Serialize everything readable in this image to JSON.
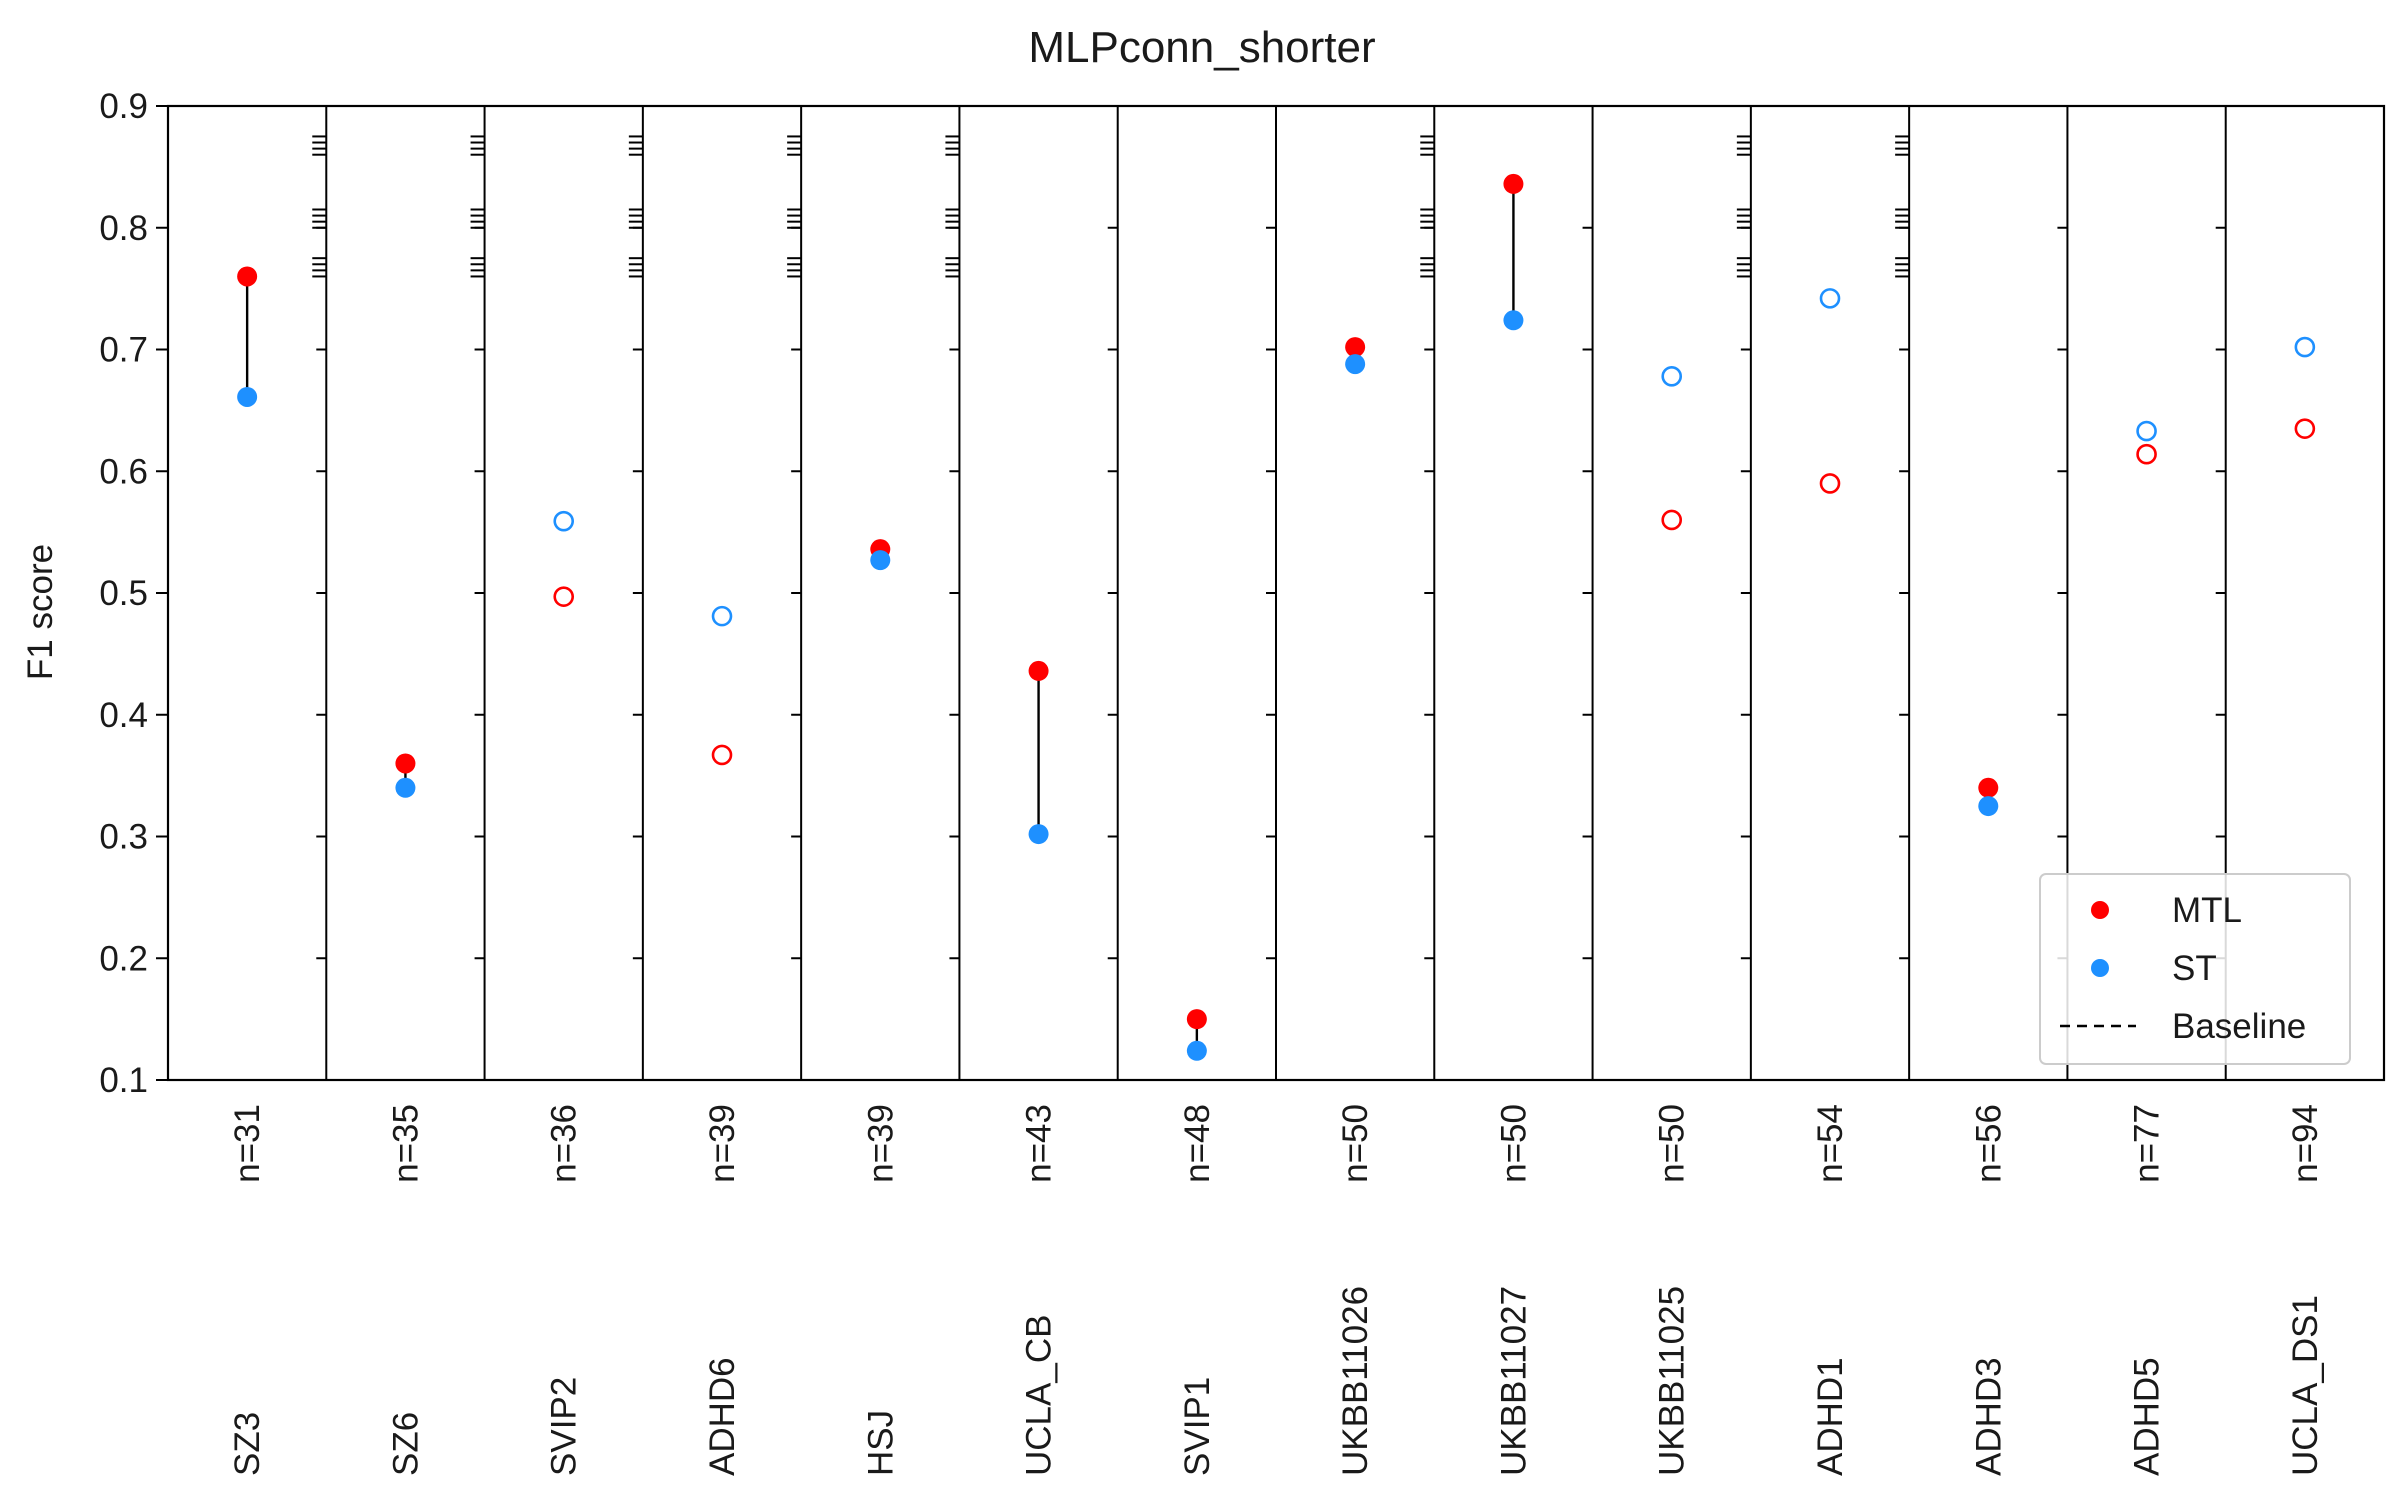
{
  "chart_data": {
    "type": "scatter",
    "title": "MLPconn_shorter",
    "ylabel": "F1 score",
    "xlabel": "",
    "ylim": [
      0.1,
      0.9
    ],
    "yticks": [
      "0.1",
      "0.2",
      "0.3",
      "0.4",
      "0.5",
      "0.6",
      "0.7",
      "0.8",
      "0.9"
    ],
    "grid": false,
    "legend_position": "bottom-right",
    "colors": {
      "MTL": "#ff0000",
      "ST": "#1e90ff",
      "connector": "#000000",
      "axis": "#000000"
    },
    "legend": [
      {
        "label": "MTL",
        "marker": "filled-circle",
        "color": "#ff0000"
      },
      {
        "label": "ST",
        "marker": "filled-circle",
        "color": "#1e90ff"
      },
      {
        "label": "Baseline",
        "marker": "dashed-line",
        "color": "#000000"
      }
    ],
    "groups": [
      {
        "name": "SZ3",
        "n": "n=31",
        "mtl": 0.76,
        "st": 0.661,
        "filled": true,
        "baseline_ticks": [
          0.76,
          0.765,
          0.77,
          0.775,
          0.8,
          0.805,
          0.81,
          0.815,
          0.86,
          0.865,
          0.87,
          0.875
        ]
      },
      {
        "name": "SZ6",
        "n": "n=35",
        "mtl": 0.36,
        "st": 0.34,
        "filled": true,
        "baseline_ticks": [
          0.76,
          0.765,
          0.77,
          0.775,
          0.8,
          0.805,
          0.81,
          0.815,
          0.86,
          0.865,
          0.87,
          0.875
        ]
      },
      {
        "name": "SVIP2",
        "n": "n=36",
        "mtl": 0.497,
        "st": 0.559,
        "filled": false,
        "baseline_ticks": [
          0.76,
          0.765,
          0.77,
          0.775,
          0.8,
          0.805,
          0.81,
          0.815,
          0.86,
          0.865,
          0.87,
          0.875
        ]
      },
      {
        "name": "ADHD6",
        "n": "n=39",
        "mtl": 0.367,
        "st": 0.481,
        "filled": false,
        "baseline_ticks": [
          0.76,
          0.765,
          0.77,
          0.775,
          0.8,
          0.805,
          0.81,
          0.815,
          0.86,
          0.865,
          0.87,
          0.875
        ]
      },
      {
        "name": "HSJ",
        "n": "n=39",
        "mtl": 0.536,
        "st": 0.527,
        "filled": true,
        "baseline_ticks": [
          0.76,
          0.765,
          0.77,
          0.775,
          0.8,
          0.805,
          0.81,
          0.815,
          0.86,
          0.865,
          0.87,
          0.875
        ]
      },
      {
        "name": "UCLA_CB",
        "n": "n=43",
        "mtl": 0.436,
        "st": 0.302,
        "filled": true,
        "baseline_ticks": []
      },
      {
        "name": "SVIP1",
        "n": "n=48",
        "mtl": 0.15,
        "st": 0.124,
        "filled": true,
        "baseline_ticks": []
      },
      {
        "name": "UKBB11026",
        "n": "n=50",
        "mtl": 0.702,
        "st": 0.688,
        "filled": true,
        "baseline_ticks": [
          0.76,
          0.765,
          0.77,
          0.775,
          0.8,
          0.805,
          0.81,
          0.815,
          0.86,
          0.865,
          0.87,
          0.875
        ]
      },
      {
        "name": "UKBB11027",
        "n": "n=50",
        "mtl": 0.836,
        "st": 0.724,
        "filled": true,
        "baseline_ticks": []
      },
      {
        "name": "UKBB11025",
        "n": "n=50",
        "mtl": 0.56,
        "st": 0.678,
        "filled": false,
        "baseline_ticks": [
          0.76,
          0.765,
          0.77,
          0.775,
          0.8,
          0.805,
          0.81,
          0.815,
          0.86,
          0.865,
          0.87,
          0.875
        ]
      },
      {
        "name": "ADHD1",
        "n": "n=54",
        "mtl": 0.59,
        "st": 0.742,
        "filled": false,
        "baseline_ticks": [
          0.76,
          0.765,
          0.77,
          0.775,
          0.8,
          0.805,
          0.81,
          0.815,
          0.86,
          0.865,
          0.87,
          0.875
        ]
      },
      {
        "name": "ADHD3",
        "n": "n=56",
        "mtl": 0.34,
        "st": 0.325,
        "filled": true,
        "baseline_ticks": []
      },
      {
        "name": "ADHD5",
        "n": "n=77",
        "mtl": 0.614,
        "st": 0.633,
        "filled": false,
        "baseline_ticks": []
      },
      {
        "name": "UCLA_DS1",
        "n": "n=94",
        "mtl": 0.635,
        "st": 0.702,
        "filled": false,
        "baseline_ticks": []
      }
    ]
  }
}
